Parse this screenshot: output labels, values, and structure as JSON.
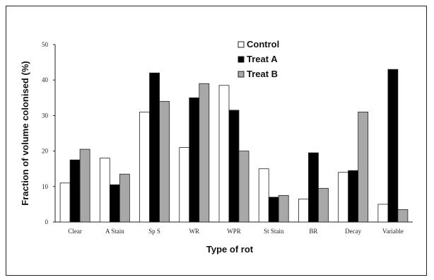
{
  "chart_data": {
    "type": "bar",
    "title": "",
    "xlabel": "Type of rot",
    "ylabel": "Fraction of volume colonised (%)",
    "ylim": [
      0,
      50
    ],
    "yticks": [
      0,
      10,
      20,
      30,
      40,
      50
    ],
    "grid": false,
    "legend_position": "top-center",
    "categories": [
      "Clear",
      "A Stain",
      "Sp S",
      "WR",
      "WPR",
      "St Stain",
      "BR",
      "Decay",
      "Variable"
    ],
    "series": [
      {
        "name": "Control",
        "color": "#ffffff",
        "values": [
          11,
          18,
          31,
          21,
          38.5,
          15,
          6.5,
          14,
          5
        ]
      },
      {
        "name": "Treat A",
        "color": "#000000",
        "values": [
          17.5,
          10.5,
          42,
          35,
          31.5,
          7,
          19.5,
          14.5,
          43
        ]
      },
      {
        "name": "Treat B",
        "color": "#a8a8a8",
        "values": [
          20.5,
          13.5,
          34,
          39,
          20,
          7.5,
          9.5,
          31,
          3.5
        ]
      }
    ]
  }
}
